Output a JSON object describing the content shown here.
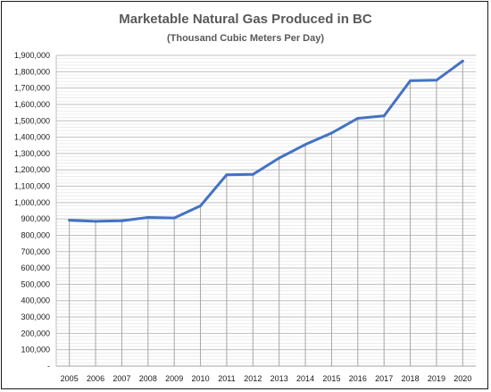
{
  "chart_data": {
    "type": "line",
    "title": "Marketable Natural Gas Produced in BC",
    "subtitle": "(Thousand Cubic Meters Per Day)",
    "xlabel": "",
    "ylabel": "",
    "categories": [
      "2005",
      "2006",
      "2007",
      "2008",
      "2009",
      "2010",
      "2011",
      "2012",
      "2013",
      "2014",
      "2015",
      "2016",
      "2017",
      "2018",
      "2019",
      "2020"
    ],
    "series": [
      {
        "values": [
          892000,
          885000,
          889000,
          909000,
          906000,
          980000,
          1170000,
          1172000,
          1272000,
          1355000,
          1425000,
          1515000,
          1530000,
          1745000,
          1748000,
          1865000
        ]
      }
    ],
    "ylim": [
      0,
      1900000
    ],
    "y_ticks": [
      "-",
      "100,000",
      "200,000",
      "300,000",
      "400,000",
      "500,000",
      "600,000",
      "700,000",
      "800,000",
      "900,000",
      "1,000,000",
      "1,100,000",
      "1,200,000",
      "1,300,000",
      "1,400,000",
      "1,500,000",
      "1,600,000",
      "1,700,000",
      "1,800,000",
      "1,900,000"
    ],
    "grid": true,
    "line_color": "#4472C4"
  }
}
